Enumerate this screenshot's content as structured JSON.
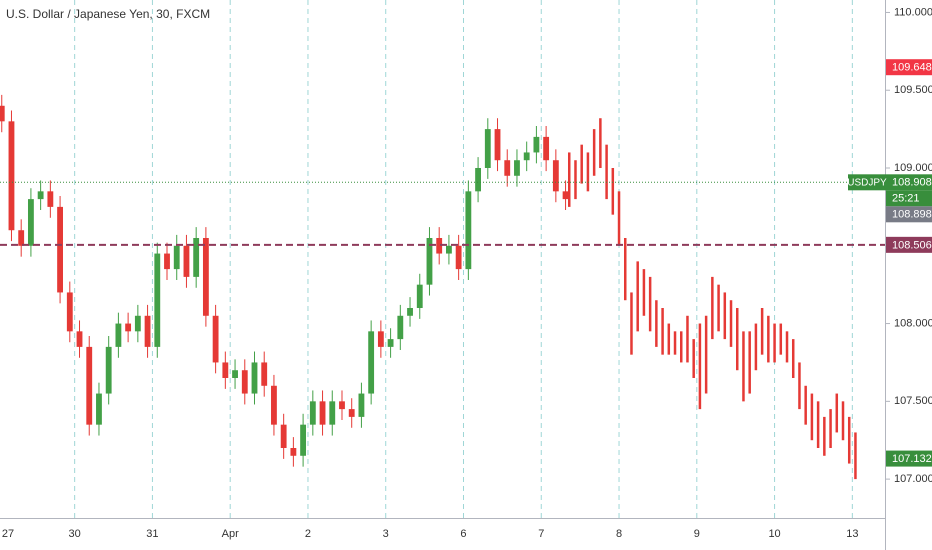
{
  "chart_data": {
    "type": "candlestick",
    "title": "U.S. Dollar / Japanese Yen, 30, FXCM",
    "xlim": [
      0.04,
      11.42
    ],
    "xticks": [
      {
        "value": 0,
        "label": "27"
      },
      {
        "value": 1,
        "label": "30"
      },
      {
        "value": 2,
        "label": "31"
      },
      {
        "value": 3,
        "label": "Apr"
      },
      {
        "value": 4,
        "label": "2"
      },
      {
        "value": 5,
        "label": "3"
      },
      {
        "value": 6,
        "label": "6"
      },
      {
        "value": 7,
        "label": "7"
      },
      {
        "value": 8,
        "label": "8"
      },
      {
        "value": 9,
        "label": "9"
      },
      {
        "value": 10,
        "label": "10"
      },
      {
        "value": 11,
        "label": "13"
      }
    ],
    "ylim": [
      106.75,
      110.08
    ],
    "yticks": [
      {
        "value": 107,
        "label": "107.000"
      },
      {
        "value": 107.5,
        "label": "107.500"
      },
      {
        "value": 108,
        "label": "108.000"
      },
      {
        "value": 109,
        "label": "109.000"
      },
      {
        "value": 109.5,
        "label": "109.500"
      },
      {
        "value": 110,
        "label": "110.000"
      }
    ],
    "grid": true,
    "up_color": "#43a047",
    "down_color": "#e53935",
    "candles": {
      "x": [
        0.0625,
        0.1875,
        0.3125,
        0.4375,
        0.5625,
        0.6875,
        0.8125,
        0.9375,
        1.0625,
        1.1875,
        1.3125,
        1.4375,
        1.5625,
        1.6875,
        1.8125,
        1.9375,
        2.0625,
        2.1875,
        2.3125,
        2.4375,
        2.5625,
        2.6875,
        2.8125,
        2.9375,
        3.0625,
        3.1875,
        3.3125,
        3.4375,
        3.5625,
        3.6875,
        3.8125,
        3.9375,
        4.0625,
        4.1875,
        4.3125,
        4.4375,
        4.5625,
        4.6875,
        4.8125,
        4.9375,
        5.0625,
        5.1875,
        5.3125,
        5.4375,
        5.5625,
        5.6875,
        5.8125,
        5.9375,
        6.0625,
        6.1875,
        6.3125,
        6.4375,
        6.5625,
        6.6875,
        6.8125,
        6.9375,
        7.0625,
        7.1875,
        7.3125
      ],
      "open": [
        109.4,
        109.3,
        108.6,
        108.5,
        108.8,
        108.85,
        108.75,
        108.2,
        107.95,
        107.85,
        107.35,
        107.55,
        107.85,
        108.0,
        107.95,
        108.05,
        107.85,
        108.45,
        108.35,
        108.5,
        108.3,
        108.55,
        108.05,
        107.75,
        107.65,
        107.7,
        107.55,
        107.75,
        107.6,
        107.35,
        107.2,
        107.15,
        107.35,
        107.5,
        107.35,
        107.5,
        107.45,
        107.4,
        107.55,
        107.95,
        107.85,
        107.9,
        108.05,
        108.1,
        108.25,
        108.55,
        108.45,
        108.5,
        108.35,
        108.85,
        109.0,
        109.25,
        109.05,
        108.95,
        109.05,
        109.1,
        109.2,
        109.05,
        108.85
      ],
      "high": [
        109.47,
        109.37,
        108.67,
        108.87,
        108.92,
        108.92,
        108.82,
        108.27,
        108.02,
        107.92,
        107.62,
        107.92,
        108.07,
        108.07,
        108.12,
        108.12,
        108.52,
        108.52,
        108.57,
        108.57,
        108.62,
        108.62,
        108.12,
        107.82,
        107.77,
        107.77,
        107.82,
        107.82,
        107.67,
        107.42,
        107.27,
        107.42,
        107.57,
        107.57,
        107.57,
        107.57,
        107.52,
        107.62,
        108.02,
        108.02,
        107.97,
        108.12,
        108.17,
        108.32,
        108.62,
        108.62,
        108.57,
        108.57,
        108.92,
        109.07,
        109.32,
        109.32,
        109.12,
        109.12,
        109.17,
        109.27,
        109.27,
        109.12,
        108.92
      ],
      "low": [
        109.23,
        108.53,
        108.43,
        108.43,
        108.73,
        108.68,
        108.13,
        107.88,
        107.78,
        107.28,
        107.28,
        107.48,
        107.78,
        107.88,
        107.88,
        107.78,
        107.78,
        108.28,
        108.28,
        108.23,
        108.23,
        107.98,
        107.68,
        107.58,
        107.58,
        107.48,
        107.48,
        107.53,
        107.28,
        107.13,
        107.08,
        107.08,
        107.28,
        107.28,
        107.28,
        107.38,
        107.33,
        107.33,
        107.48,
        107.78,
        107.78,
        107.83,
        107.98,
        108.03,
        108.18,
        108.38,
        108.38,
        108.28,
        108.28,
        108.78,
        108.93,
        108.98,
        108.88,
        108.88,
        108.98,
        109.03,
        108.98,
        108.78,
        108.73
      ],
      "close": [
        109.3,
        108.6,
        108.5,
        108.8,
        108.85,
        108.75,
        108.2,
        107.95,
        107.85,
        107.35,
        107.55,
        107.85,
        108.0,
        107.95,
        108.05,
        107.85,
        108.45,
        108.35,
        108.5,
        108.3,
        108.55,
        108.05,
        107.75,
        107.65,
        107.7,
        107.55,
        107.75,
        107.6,
        107.35,
        107.2,
        107.15,
        107.35,
        107.5,
        107.35,
        107.5,
        107.45,
        107.4,
        107.55,
        107.95,
        107.85,
        107.9,
        108.05,
        108.1,
        108.25,
        108.55,
        108.45,
        108.5,
        108.35,
        108.85,
        109.0,
        109.25,
        109.05,
        108.95,
        109.05,
        109.1,
        109.2,
        109.05,
        108.85,
        108.8
      ]
    },
    "bars": {
      "color": "#e53935",
      "x": [
        7.36,
        7.44,
        7.52,
        7.6,
        7.68,
        7.76,
        7.84,
        7.92,
        8.0,
        8.08,
        8.16,
        8.24,
        8.32,
        8.4,
        8.48,
        8.56,
        8.64,
        8.72,
        8.8,
        8.88,
        8.96,
        9.04,
        9.12,
        9.2,
        9.28,
        9.36,
        9.44,
        9.52,
        9.6,
        9.68,
        9.76,
        9.84,
        9.92,
        10.0,
        10.08,
        10.16,
        10.24,
        10.32,
        10.4,
        10.48,
        10.56,
        10.64,
        10.72,
        10.8,
        10.88,
        10.96,
        11.04
      ],
      "high": [
        109.1,
        109.05,
        109.15,
        109.1,
        109.25,
        109.32,
        109.15,
        109.0,
        108.85,
        108.55,
        108.2,
        108.4,
        108.35,
        108.3,
        108.15,
        108.1,
        108.0,
        107.95,
        107.95,
        108.05,
        107.9,
        108.0,
        108.05,
        108.3,
        108.25,
        108.2,
        108.15,
        108.1,
        107.95,
        107.95,
        108.0,
        108.1,
        108.05,
        108.0,
        108.0,
        107.95,
        107.9,
        107.75,
        107.6,
        107.55,
        107.5,
        107.4,
        107.45,
        107.55,
        107.5,
        107.4,
        107.3
      ],
      "low": [
        108.75,
        108.8,
        108.9,
        108.85,
        108.95,
        109.0,
        108.8,
        108.7,
        108.5,
        108.15,
        107.8,
        107.95,
        108.05,
        107.95,
        107.85,
        107.8,
        107.8,
        107.8,
        107.75,
        107.75,
        107.65,
        107.45,
        107.55,
        107.9,
        107.95,
        107.9,
        107.85,
        107.7,
        107.5,
        107.55,
        107.7,
        107.8,
        107.75,
        107.75,
        107.8,
        107.75,
        107.65,
        107.45,
        107.35,
        107.25,
        107.2,
        107.15,
        107.2,
        107.3,
        107.25,
        107.1,
        107.0
      ]
    },
    "price_labels": [
      {
        "value": 109.648,
        "color": "#f23645"
      },
      {
        "name": "USDJPY",
        "value": 108.908,
        "color": "#388e3c",
        "line": "dotted",
        "countdown": "25:21"
      },
      {
        "value": 108.898,
        "color": "#787b86"
      },
      {
        "value": 108.506,
        "color": "#8e3b5b",
        "line": "dashed"
      },
      {
        "value": 107.132,
        "color": "#388e3c"
      }
    ]
  }
}
